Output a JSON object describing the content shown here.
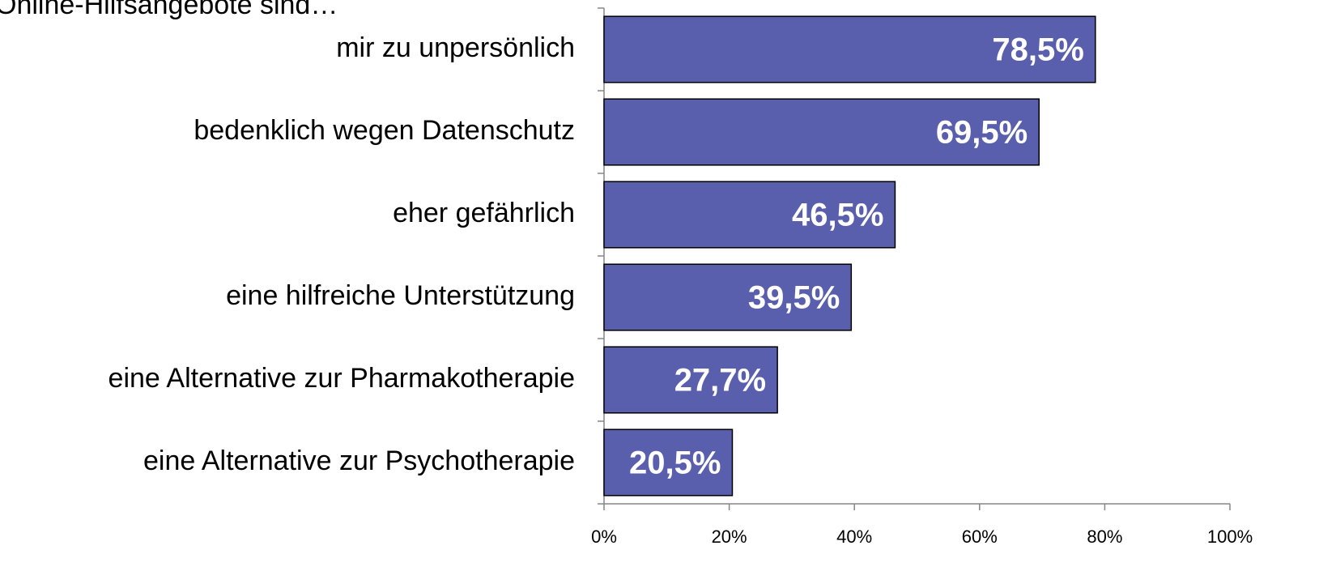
{
  "chart_data": {
    "type": "hbar",
    "title": "Online-Hilfsangebote sind…",
    "categories": [
      "mir zu unpersönlich",
      "bedenklich wegen Datenschutz",
      "eher gefährlich",
      "eine hilfreiche Unterstützung",
      "eine Alternative zur Pharmakotherapie",
      "eine Alternative zur Psychotherapie"
    ],
    "values": [
      78.5,
      69.5,
      46.5,
      39.5,
      27.7,
      20.5
    ],
    "value_labels": [
      "78,5%",
      "69,5%",
      "46,5%",
      "39,5%",
      "27,7%",
      "20,5%"
    ],
    "color": "#5a5fad",
    "xlim": [
      0,
      100
    ],
    "xticks": [
      {
        "value": 0,
        "label": "0%"
      },
      {
        "value": 20,
        "label": "20%"
      },
      {
        "value": 40,
        "label": "40%"
      },
      {
        "value": 60,
        "label": "60%"
      },
      {
        "value": 80,
        "label": "80%"
      },
      {
        "value": 100,
        "label": "100%"
      }
    ],
    "grid": false
  }
}
